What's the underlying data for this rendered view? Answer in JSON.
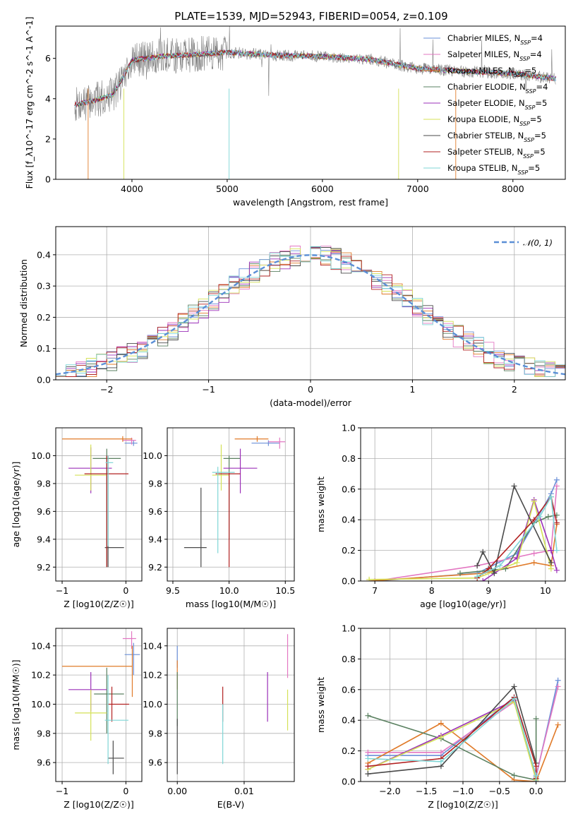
{
  "figure": {
    "title": "PLATE=1539, MJD=52943, FIBERID=0054, z=0.109"
  },
  "colors": [
    "#6a8fd8",
    "#e377c2",
    "#e07b2a",
    "#5a8060",
    "#9b30b8",
    "#d4e157",
    "#4a4a4a",
    "#b22222",
    "#7fd6d6"
  ],
  "chart_data": [
    {
      "type": "line",
      "panel": "spectrum",
      "xlabel": "wavelength [Angstrom, rest frame]",
      "ylabel": "Flux [f_λ10^-17 erg cm^-2 s^-1 A^-1]",
      "xlim": [
        3200,
        8550
      ],
      "ylim": [
        0,
        7.6
      ],
      "xticks": [
        "4000",
        "5000",
        "6000",
        "7000",
        "8000"
      ],
      "yticks": [
        "0",
        "2",
        "4",
        "6"
      ],
      "grid": false,
      "legend": "right",
      "legend_entries": [
        {
          "pre": "Chabrier MILES, N",
          "sub": "SSP",
          "post": "=4"
        },
        {
          "pre": "Salpeter MILES, N",
          "sub": "SSP",
          "post": "=4"
        },
        {
          "pre": "Kroupa MILES, N",
          "sub": "SSP",
          "post": "=5"
        },
        {
          "pre": "Chabrier ELODIE, N",
          "sub": "SSP",
          "post": "=4"
        },
        {
          "pre": "Salpeter ELODIE, N",
          "sub": "SSP",
          "post": "=5"
        },
        {
          "pre": "Kroupa ELODIE, N",
          "sub": "SSP",
          "post": "=5"
        },
        {
          "pre": "Chabrier STELIB, N",
          "sub": "SSP",
          "post": "=5"
        },
        {
          "pre": "Salpeter STELIB, N",
          "sub": "SSP",
          "post": "=5"
        },
        {
          "pre": "Kroupa STELIB, N",
          "sub": "SSP",
          "post": "=5"
        }
      ],
      "continuum": [
        [
          3400,
          3.7
        ],
        [
          3600,
          3.9
        ],
        [
          3800,
          4.2
        ],
        [
          3900,
          5.0
        ],
        [
          4000,
          5.9
        ],
        [
          4300,
          6.1
        ],
        [
          4700,
          6.2
        ],
        [
          5000,
          6.3
        ],
        [
          5500,
          6.15
        ],
        [
          6000,
          6.1
        ],
        [
          6500,
          5.95
        ],
        [
          7000,
          5.5
        ],
        [
          7500,
          5.35
        ],
        [
          8000,
          5.25
        ],
        [
          8450,
          5.0
        ]
      ]
    },
    {
      "type": "step",
      "panel": "residual-histogram",
      "xlabel": "(data-model)/error",
      "ylabel": "Normed distribution",
      "xlim": [
        -2.5,
        2.5
      ],
      "ylim": [
        0,
        0.49
      ],
      "xticks": [
        "−2",
        "−1",
        "0",
        "1",
        "2"
      ],
      "yticks": [
        "0.0",
        "0.1",
        "0.2",
        "0.3",
        "0.4"
      ],
      "grid": true,
      "legend": "top-right",
      "legend_label": "𝒩(0, 1)"
    },
    {
      "type": "scatter",
      "panel": "age-vs-Z",
      "xlabel": "Z [log10(Z/Z☉)]",
      "ylabel": "age  [log10(age/yr)]",
      "xlim": [
        -1.1,
        0.25
      ],
      "ylim": [
        9.1,
        10.2
      ],
      "xticks": [
        "−1",
        "0"
      ],
      "yticks": [
        "9.2",
        "9.4",
        "9.6",
        "9.8",
        "10.0"
      ],
      "grid": true,
      "points": [
        {
          "x": 0.12,
          "y": 10.09,
          "xe": [
            -0.02,
            0.18
          ],
          "ye": [
            10.07,
            10.11
          ]
        },
        {
          "x": 0.09,
          "y": 10.11,
          "xe": [
            -0.05,
            0.16
          ],
          "ye": [
            10.08,
            10.13
          ]
        },
        {
          "x": -0.05,
          "y": 10.12,
          "xe": [
            -1.0,
            0.1
          ],
          "ye": [
            10.1,
            10.14
          ]
        },
        {
          "x": -0.3,
          "y": 9.98,
          "xe": [
            -0.52,
            -0.08
          ],
          "ye": [
            9.2,
            10.05
          ]
        },
        {
          "x": -0.55,
          "y": 9.91,
          "xe": [
            -0.9,
            -0.22
          ],
          "ye": [
            9.73,
            10.06
          ]
        },
        {
          "x": -0.55,
          "y": 9.86,
          "xe": [
            -0.8,
            -0.3
          ],
          "ye": [
            9.75,
            10.08
          ]
        },
        {
          "x": -0.28,
          "y": 9.34,
          "xe": [
            -0.33,
            -0.03
          ],
          "ye": [
            9.2,
            10.0
          ]
        },
        {
          "x": -0.3,
          "y": 9.87,
          "xe": [
            -0.65,
            0.04
          ],
          "ye": [
            9.2,
            10.0
          ]
        },
        {
          "x": -0.28,
          "y": 9.95,
          "xe": [
            -0.32,
            -0.2
          ],
          "ye": [
            9.35,
            10.0
          ]
        }
      ]
    },
    {
      "type": "scatter",
      "panel": "age-vs-mass",
      "xlabel": "mass [log10(M/M☉)]",
      "ylabel": "",
      "xlim": [
        9.45,
        10.58
      ],
      "ylim": [
        9.1,
        10.2
      ],
      "xticks": [
        "9.5",
        "10.0",
        "10.5"
      ],
      "yticks": [
        "9.2",
        "9.4",
        "9.6",
        "9.8",
        "10.0"
      ],
      "grid": true,
      "points": [
        {
          "x": 10.35,
          "y": 10.09,
          "xe": [
            10.2,
            10.45
          ],
          "ye": [
            10.07,
            10.11
          ]
        },
        {
          "x": 10.45,
          "y": 10.1,
          "xe": [
            10.35,
            10.5
          ],
          "ye": [
            10.05,
            10.13
          ]
        },
        {
          "x": 10.25,
          "y": 10.12,
          "xe": [
            10.05,
            10.35
          ],
          "ye": [
            10.1,
            10.14
          ]
        },
        {
          "x": 10.0,
          "y": 9.98,
          "xe": [
            9.95,
            10.1
          ],
          "ye": [
            9.4,
            10.0
          ]
        },
        {
          "x": 10.1,
          "y": 9.91,
          "xe": [
            9.95,
            10.25
          ],
          "ye": [
            9.73,
            10.05
          ]
        },
        {
          "x": 9.93,
          "y": 9.86,
          "xe": [
            9.85,
            10.0
          ],
          "ye": [
            9.75,
            10.08
          ]
        },
        {
          "x": 9.75,
          "y": 9.34,
          "xe": [
            9.6,
            9.8
          ],
          "ye": [
            9.2,
            9.77
          ]
        },
        {
          "x": 10.0,
          "y": 9.87,
          "xe": [
            9.88,
            10.1
          ],
          "ye": [
            9.2,
            9.88
          ]
        },
        {
          "x": 9.9,
          "y": 9.88,
          "xe": [
            9.85,
            10.05
          ],
          "ye": [
            9.3,
            9.92
          ]
        }
      ]
    },
    {
      "type": "line",
      "panel": "mass-weight-vs-age",
      "xlabel": "age  [log10(age/yr)]",
      "ylabel": "mass weight",
      "xlim": [
        6.75,
        10.35
      ],
      "ylim": [
        0,
        1
      ],
      "xticks": [
        "7",
        "8",
        "9",
        "10"
      ],
      "yticks": [
        "0.0",
        "0.2",
        "0.4",
        "0.6",
        "0.8",
        "1.0"
      ],
      "grid": true,
      "series": [
        {
          "points": [
            [
              7.0,
              0.0
            ],
            [
              8.8,
              0.05
            ],
            [
              9.5,
              0.18
            ],
            [
              10.1,
              0.57
            ],
            [
              10.2,
              0.66
            ]
          ]
        },
        {
          "points": [
            [
              7.0,
              0.0
            ],
            [
              8.8,
              0.1
            ],
            [
              9.8,
              0.18
            ],
            [
              10.1,
              0.2
            ],
            [
              10.2,
              0.62
            ]
          ]
        },
        {
          "points": [
            [
              6.9,
              0.0
            ],
            [
              8.9,
              0.05
            ],
            [
              9.8,
              0.12
            ],
            [
              10.1,
              0.1
            ],
            [
              10.2,
              0.37
            ]
          ]
        },
        {
          "points": [
            [
              8.5,
              0.05
            ],
            [
              9.3,
              0.08
            ],
            [
              9.8,
              0.38
            ],
            [
              10.05,
              0.42
            ],
            [
              10.2,
              0.43
            ]
          ]
        },
        {
          "points": [
            [
              8.9,
              0.0
            ],
            [
              9.5,
              0.15
            ],
            [
              9.8,
              0.53
            ],
            [
              10.1,
              0.2
            ],
            [
              10.2,
              0.07
            ]
          ]
        },
        {
          "points": [
            [
              6.9,
              0.01
            ],
            [
              8.8,
              0.02
            ],
            [
              9.5,
              0.12
            ],
            [
              9.8,
              0.52
            ],
            [
              10.1,
              0.08
            ]
          ]
        },
        {
          "points": [
            [
              8.8,
              0.1
            ],
            [
              8.9,
              0.19
            ],
            [
              9.1,
              0.05
            ],
            [
              9.45,
              0.62
            ],
            [
              10.1,
              0.12
            ]
          ]
        },
        {
          "points": [
            [
              8.8,
              0.02
            ],
            [
              9.0,
              0.08
            ],
            [
              9.8,
              0.4
            ],
            [
              10.1,
              0.55
            ],
            [
              10.2,
              0.38
            ]
          ]
        },
        {
          "points": [
            [
              8.8,
              0.03
            ],
            [
              9.2,
              0.1
            ],
            [
              9.9,
              0.42
            ],
            [
              10.1,
              0.55
            ],
            [
              10.2,
              0.2
            ]
          ]
        }
      ]
    },
    {
      "type": "scatter",
      "panel": "mass-vs-Z",
      "xlabel": "Z [log10(Z/Z☉)]",
      "ylabel": "mass [log10(M/M☉)]",
      "xlim": [
        -1.1,
        0.25
      ],
      "ylim": [
        9.47,
        10.52
      ],
      "xticks": [
        "−1",
        "0"
      ],
      "yticks": [
        "9.6",
        "9.8",
        "10.0",
        "10.2",
        "10.4"
      ],
      "grid": true,
      "points": [
        {
          "x": 0.12,
          "y": 10.34,
          "xe": [
            -0.02,
            0.22
          ],
          "ye": [
            10.2,
            10.42
          ]
        },
        {
          "x": 0.09,
          "y": 10.45,
          "xe": [
            -0.05,
            0.16
          ],
          "ye": [
            10.38,
            10.5
          ]
        },
        {
          "x": 0.1,
          "y": 10.26,
          "xe": [
            -1.0,
            0.1
          ],
          "ye": [
            10.05,
            10.4
          ]
        },
        {
          "x": -0.3,
          "y": 10.07,
          "xe": [
            -0.5,
            -0.03
          ],
          "ye": [
            9.8,
            10.25
          ]
        },
        {
          "x": -0.55,
          "y": 10.1,
          "xe": [
            -0.9,
            -0.3
          ],
          "ye": [
            9.95,
            10.22
          ]
        },
        {
          "x": -0.55,
          "y": 9.94,
          "xe": [
            -0.8,
            -0.3
          ],
          "ye": [
            9.75,
            10.1
          ]
        },
        {
          "x": -0.2,
          "y": 9.63,
          "xe": [
            -0.28,
            -0.03
          ],
          "ye": [
            9.52,
            9.75
          ]
        },
        {
          "x": -0.22,
          "y": 10.0,
          "xe": [
            -0.28,
            0.05
          ],
          "ye": [
            9.88,
            10.12
          ]
        },
        {
          "x": -0.28,
          "y": 9.89,
          "xe": [
            -0.33,
            0.04
          ],
          "ye": [
            9.59,
            10.2
          ]
        }
      ]
    },
    {
      "type": "scatter",
      "panel": "mass-vs-EBV",
      "xlabel": "E(B-V)",
      "ylabel": "",
      "xlim": [
        -0.0015,
        0.0175
      ],
      "ylim": [
        9.47,
        10.52
      ],
      "xticks": [
        "0.00",
        "0.01"
      ],
      "yticks": [
        "9.6",
        "9.8",
        "10.0",
        "10.2",
        "10.4"
      ],
      "grid": true,
      "points": [
        {
          "x": 0.0,
          "y": 10.34,
          "xe": [
            0.0,
            0.0
          ],
          "ye": [
            10.25,
            10.4
          ]
        },
        {
          "x": 0.0165,
          "y": 10.35,
          "xe": [
            0.0165,
            0.0165
          ],
          "ye": [
            10.18,
            10.48
          ]
        },
        {
          "x": 0.0,
          "y": 10.2,
          "xe": [
            0.0,
            0.0
          ],
          "ye": [
            10.1,
            10.3
          ]
        },
        {
          "x": 0.0,
          "y": 10.05,
          "xe": [
            0.0,
            0.0
          ],
          "ye": [
            9.85,
            10.22
          ]
        },
        {
          "x": 0.0135,
          "y": 10.05,
          "xe": [
            0.0135,
            0.0135
          ],
          "ye": [
            9.88,
            10.22
          ]
        },
        {
          "x": 0.0165,
          "y": 9.97,
          "xe": [
            0.0165,
            0.0165
          ],
          "ye": [
            9.82,
            10.1
          ]
        },
        {
          "x": 0.0,
          "y": 9.7,
          "xe": [
            0.0,
            0.0
          ],
          "ye": [
            9.52,
            9.9
          ]
        },
        {
          "x": 0.0068,
          "y": 10.0,
          "xe": [
            0.0068,
            0.0068
          ],
          "ye": [
            9.88,
            10.12
          ]
        },
        {
          "x": 0.0068,
          "y": 9.8,
          "xe": [
            0.0068,
            0.0068
          ],
          "ye": [
            9.59,
            10.0
          ]
        }
      ]
    },
    {
      "type": "line",
      "panel": "mass-weight-vs-Z",
      "xlabel": "Z [log10(Z/Z☉)]",
      "ylabel": "mass weight",
      "xlim": [
        -2.4,
        0.4
      ],
      "ylim": [
        0,
        1
      ],
      "xticks": [
        "−2.0",
        "−1.5",
        "−1.0",
        "−0.5",
        "0.0"
      ],
      "yticks": [
        "0.0",
        "0.2",
        "0.4",
        "0.6",
        "0.8",
        "1.0"
      ],
      "grid": true,
      "series": [
        {
          "points": [
            [
              -2.3,
              0.17
            ],
            [
              -1.3,
              0.17
            ],
            [
              -0.3,
              0.55
            ],
            [
              0.0,
              0.03
            ],
            [
              0.3,
              0.66
            ]
          ]
        },
        {
          "points": [
            [
              -2.3,
              0.19
            ],
            [
              -1.3,
              0.19
            ],
            [
              -0.3,
              0.52
            ],
            [
              0.0,
              0.04
            ],
            [
              0.3,
              0.62
            ]
          ]
        },
        {
          "points": [
            [
              -2.3,
              0.12
            ],
            [
              -1.3,
              0.38
            ],
            [
              -0.3,
              0.01
            ],
            [
              0.0,
              0.0
            ],
            [
              0.3,
              0.37
            ]
          ]
        },
        {
          "points": [
            [
              -2.3,
              0.43
            ],
            [
              -1.3,
              0.28
            ],
            [
              -0.3,
              0.04
            ],
            [
              0.0,
              0.01
            ],
            [
              0.0,
              0.41
            ]
          ]
        },
        {
          "points": [
            [
              -2.3,
              0.08
            ],
            [
              -1.3,
              0.3
            ],
            [
              -0.3,
              0.53
            ],
            [
              0.0,
              0.02
            ],
            [
              0.0,
              0.0
            ]
          ]
        },
        {
          "points": [
            [
              -2.3,
              0.08
            ],
            [
              -1.3,
              0.29
            ],
            [
              -0.3,
              0.52
            ],
            [
              0.0,
              0.01
            ],
            [
              0.0,
              0.02
            ]
          ]
        },
        {
          "points": [
            [
              -2.3,
              0.05
            ],
            [
              -1.3,
              0.1
            ],
            [
              -0.3,
              0.62
            ],
            [
              0.0,
              0.12
            ],
            [
              0.0,
              0.0
            ]
          ]
        },
        {
          "points": [
            [
              -2.3,
              0.1
            ],
            [
              -1.3,
              0.15
            ],
            [
              -0.3,
              0.55
            ],
            [
              0.0,
              0.1
            ],
            [
              0.0,
              0.02
            ]
          ]
        },
        {
          "points": [
            [
              -2.3,
              0.15
            ],
            [
              -1.3,
              0.13
            ],
            [
              -0.3,
              0.54
            ],
            [
              0.0,
              0.04
            ],
            [
              0.0,
              0.0
            ]
          ]
        }
      ]
    }
  ]
}
